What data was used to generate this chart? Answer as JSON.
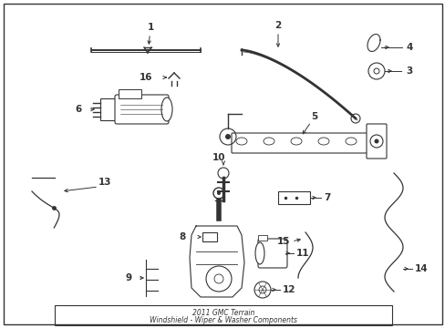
{
  "title_line1": "2011 GMC Terrain",
  "title_line2": "Windshield - Wiper & Washer Components",
  "bg_color": "#ffffff",
  "line_color": "#333333"
}
